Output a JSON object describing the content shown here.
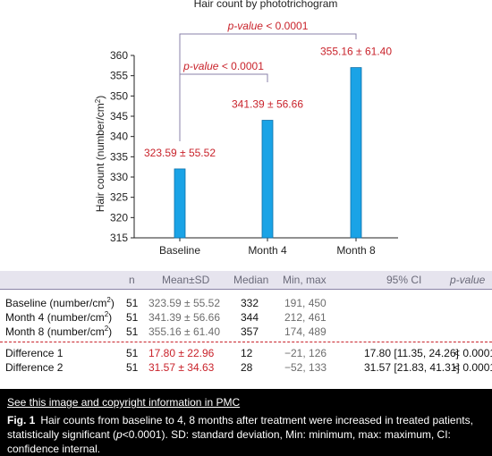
{
  "chart_data": {
    "type": "bar",
    "title": "Hair count by phototrichogram",
    "ylabel": "Hair count (number/cm²)",
    "categories": [
      "Baseline",
      "Month 4",
      "Month 8"
    ],
    "values": [
      332,
      344,
      357
    ],
    "value_labels": [
      "323.59 ± 55.52",
      "341.39 ± 56.66",
      "355.16 ± 61.40"
    ],
    "ylim": [
      315,
      360
    ],
    "yticks": [
      315,
      320,
      325,
      330,
      335,
      340,
      345,
      350,
      355,
      360
    ],
    "annotations": [
      {
        "from": "Baseline",
        "to": "Month 4",
        "label": "p-value < 0.0001"
      },
      {
        "from": "Baseline",
        "to": "Month 8",
        "label": "p-value < 0.0001"
      }
    ],
    "bar_color": "#1aa3e6",
    "label_color": "#c9232b"
  },
  "table": {
    "headers": {
      "n": "n",
      "mean": "Mean±SD",
      "median": "Median",
      "minmax": "Min, max",
      "ci": "95% CI",
      "p": "p-value"
    },
    "rows": [
      {
        "label": "Baseline (number/cm",
        "sup": "2",
        "tail": ")",
        "n": "51",
        "mean": "323.59 ± 55.52",
        "median": "332",
        "minmax": "191, 450",
        "ci": "",
        "p": ""
      },
      {
        "label": "Month 4 (number/cm",
        "sup": "2",
        "tail": ")",
        "n": "51",
        "mean": "341.39 ± 56.66",
        "median": "344",
        "minmax": "212, 461",
        "ci": "",
        "p": ""
      },
      {
        "label": "Month 8 (number/cm",
        "sup": "2",
        "tail": ")",
        "n": "51",
        "mean": "355.16 ± 61.40",
        "median": "357",
        "minmax": "174, 489",
        "ci": "",
        "p": ""
      },
      {
        "label": "Difference 1",
        "sup": "",
        "tail": "",
        "n": "51",
        "mean": "17.80 ± 22.96",
        "median": "12",
        "minmax": "−21, 126",
        "ci": "17.80 [11.35, 24.26]",
        "p": "< 0.0001"
      },
      {
        "label": "Difference 2",
        "sup": "",
        "tail": "",
        "n": "51",
        "mean": "31.57 ± 34.63",
        "median": "28",
        "minmax": "−52, 133",
        "ci": "31.57 [21.83, 41.31]",
        "p": "< 0.0001"
      }
    ]
  },
  "caption": {
    "link": "See this image and copyright information in PMC",
    "fig_label": "Fig. 1",
    "text_a": "Hair counts from baseline to 4, 8 months after treatment were increased in treated patients, statistically significant (",
    "text_p": "p",
    "text_b": "<0.0001). SD: standard deviation, Min: minimum, max: maximum, CI: confidence internal."
  }
}
